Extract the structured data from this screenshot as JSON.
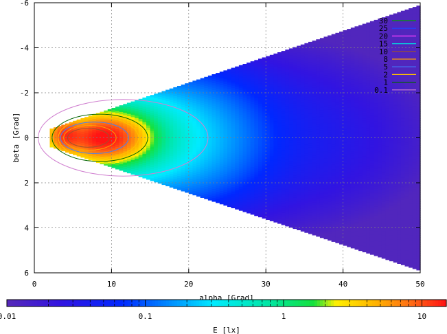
{
  "chart_data": {
    "type": "heatmap",
    "xlabel": "alpha [Grad]",
    "ylabel": "beta [Grad]",
    "colorbar_label": "E [lx]",
    "xlim": [
      0,
      50
    ],
    "ylim": [
      -6,
      6
    ],
    "y_axis_inverted": true,
    "x_ticks": [
      "0",
      "10",
      "20",
      "30",
      "40",
      "50"
    ],
    "y_ticks": [
      "-6",
      "-4",
      "-2",
      "0",
      "2",
      "4",
      "6"
    ],
    "colorbar_scale": "log",
    "colorbar_range": [
      0.01,
      15
    ],
    "colorbar_ticks": [
      "0.01",
      "0.1",
      "1",
      "10"
    ],
    "grid": true,
    "legend_position": "top-right",
    "contour_levels": [
      {
        "label": "30",
        "color": "#00a000"
      },
      {
        "label": "25",
        "color": "#2040ff"
      },
      {
        "label": "20",
        "color": "#ff40ff"
      },
      {
        "label": "15",
        "color": "#00e0e0"
      },
      {
        "label": "10",
        "color": "#a0522d"
      },
      {
        "label": "8",
        "color": "#ffa000"
      },
      {
        "label": "5",
        "color": "#4080ff"
      },
      {
        "label": "2",
        "color": "#ffc000"
      },
      {
        "label": "1",
        "color": "#006400"
      },
      {
        "label": "0.1",
        "color": "#d080d0"
      }
    ],
    "peak": {
      "alpha": 9,
      "beta": 0,
      "value": 15
    }
  }
}
